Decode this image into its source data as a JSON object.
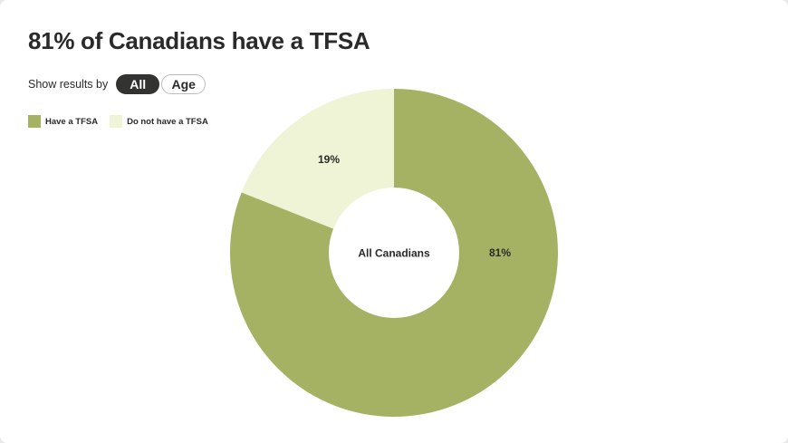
{
  "header": {
    "title": "81% of Canadians have a TFSA"
  },
  "filter": {
    "label": "Show results by",
    "options": [
      {
        "label": "All",
        "active": true
      },
      {
        "label": "Age",
        "active": false
      }
    ]
  },
  "legend": [
    {
      "label": "Have a TFSA",
      "color": "#a6b263"
    },
    {
      "label": "Do not have a TFSA",
      "color": "#eef4d5"
    }
  ],
  "center_label": "All Canadians",
  "chart_data": {
    "type": "pie",
    "subtype": "donut",
    "title": "81% of Canadians have a TFSA",
    "center_label": "All Canadians",
    "categories": [
      "Have a TFSA",
      "Do not have a TFSA"
    ],
    "values": [
      81,
      19
    ],
    "data_labels": [
      "81%",
      "19%"
    ],
    "colors": [
      "#a6b263",
      "#eef4d5"
    ],
    "legend_position": "top-left"
  }
}
